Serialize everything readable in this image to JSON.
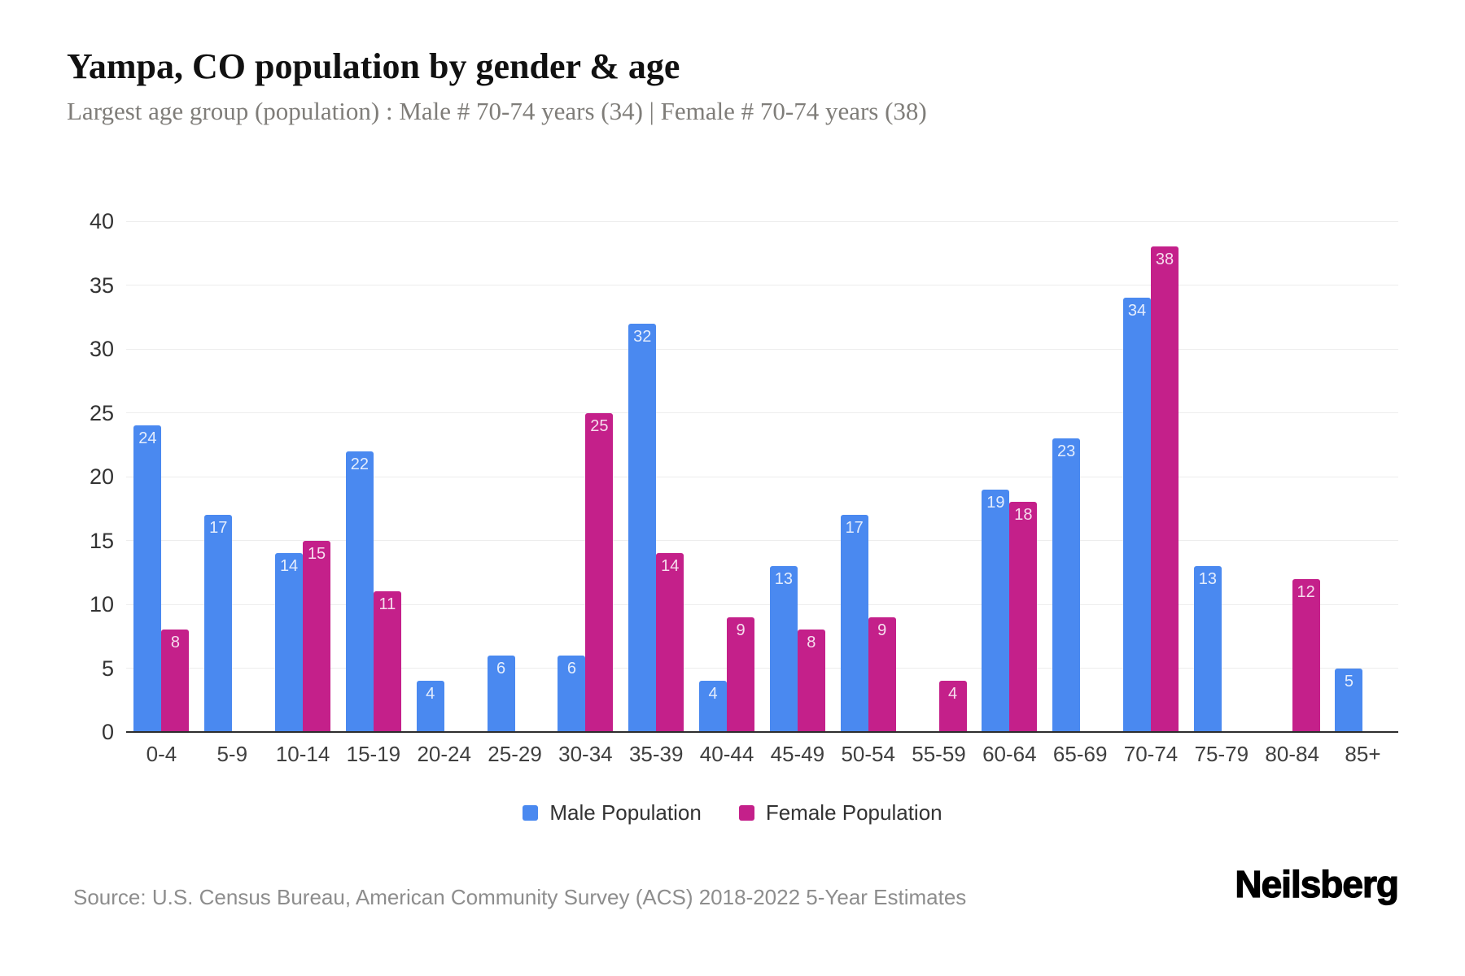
{
  "header": {
    "title": "Yampa, CO population by gender & age",
    "subtitle": "Largest age group (population) : Male # 70-74 years (34) | Female # 70-74 years (38)"
  },
  "chart_data": {
    "type": "bar",
    "title": "Yampa, CO population by gender & age",
    "categories": [
      "0-4",
      "5-9",
      "10-14",
      "15-19",
      "20-24",
      "25-29",
      "30-34",
      "35-39",
      "40-44",
      "45-49",
      "50-54",
      "55-59",
      "60-64",
      "65-69",
      "70-74",
      "75-79",
      "80-84",
      "85+"
    ],
    "series": [
      {
        "name": "Male Population",
        "color": "#4a89f0",
        "values": [
          24,
          17,
          14,
          22,
          4,
          6,
          6,
          32,
          4,
          13,
          17,
          null,
          19,
          23,
          34,
          13,
          null,
          5
        ]
      },
      {
        "name": "Female Population",
        "color": "#c4208a",
        "values": [
          8,
          null,
          15,
          11,
          null,
          null,
          25,
          14,
          9,
          8,
          9,
          4,
          18,
          null,
          38,
          null,
          12,
          null
        ]
      }
    ],
    "xlabel": "",
    "ylabel": "",
    "ylim": [
      0,
      40
    ],
    "ytick_step": 5,
    "grid": true,
    "legend_position": "bottom",
    "value_labels": "inside-top"
  },
  "footer": {
    "source": "Source: U.S. Census Bureau, American Community Survey (ACS) 2018-2022 5-Year Estimates",
    "brand": "Neilsberg"
  }
}
